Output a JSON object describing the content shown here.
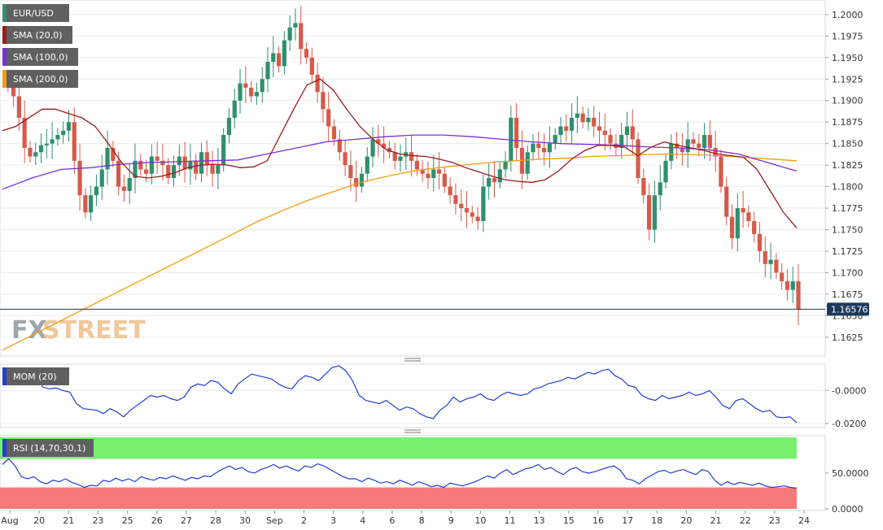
{
  "symbol": "EUR/USD",
  "watermark": {
    "part1": "FX",
    "part2": "STREET"
  },
  "price_tag": "1.16576",
  "indicators": {
    "sma20": {
      "label": "SMA (20,0)",
      "color": "#9b1c1c"
    },
    "sma100": {
      "label": "SMA (100,0)",
      "color": "#7a2fd8"
    },
    "sma200": {
      "label": "SMA (200,0)",
      "color": "#f39c12"
    },
    "mom": {
      "label": "MOM (20)",
      "color": "#1f3fd6"
    },
    "rsi": {
      "label": "RSI (14,70,30,1)",
      "color": "#1f3fd6"
    }
  },
  "colors": {
    "up": "#2f8f6f",
    "down": "#d65a4a",
    "rsi_high": "#78f06e",
    "rsi_low": "#f77a7a",
    "tag_bg": "#606060"
  },
  "chart_data": [
    {
      "type": "candlestick",
      "title": "EUR/USD",
      "x_tick_labels": [
        "Aug",
        "20",
        "21",
        "23",
        "25",
        "26",
        "27",
        "28",
        "30",
        "Sep",
        "2",
        "3",
        "4",
        "6",
        "8",
        "9",
        "10",
        "11",
        "13",
        "15",
        "16",
        "17",
        "18",
        "20",
        "21",
        "22",
        "23",
        "24"
      ],
      "y_tick_labels": [
        "1.2000",
        "1.1975",
        "1.1950",
        "1.1925",
        "1.1900",
        "1.1875",
        "1.1850",
        "1.1825",
        "1.1800",
        "1.1775",
        "1.1750",
        "1.1725",
        "1.1700",
        "1.1675",
        "1.1650",
        "1.1625"
      ],
      "ylim": [
        1.1605,
        1.2015
      ],
      "last_price": 1.16576,
      "close_series": [
        1.1925,
        1.192,
        1.1905,
        1.188,
        1.1845,
        1.1835,
        1.184,
        1.1848,
        1.185,
        1.1855,
        1.186,
        1.1865,
        1.1875,
        1.183,
        1.179,
        1.177,
        1.179,
        1.18,
        1.182,
        1.1845,
        1.183,
        1.18,
        1.1795,
        1.181,
        1.183,
        1.182,
        1.1815,
        1.1835,
        1.183,
        1.1825,
        1.181,
        1.1825,
        1.1835,
        1.182,
        1.183,
        1.1815,
        1.184,
        1.1825,
        1.1815,
        1.1825,
        1.186,
        1.188,
        1.19,
        1.192,
        1.1915,
        1.1905,
        1.191,
        1.1925,
        1.1945,
        1.1955,
        1.194,
        1.197,
        1.1985,
        1.199,
        1.196,
        1.195,
        1.193,
        1.191,
        1.189,
        1.187,
        1.1855,
        1.184,
        1.1825,
        1.181,
        1.18,
        1.1815,
        1.1835,
        1.1855,
        1.185,
        1.1845,
        1.184,
        1.183,
        1.1835,
        1.184,
        1.183,
        1.182,
        1.1815,
        1.181,
        1.182,
        1.1815,
        1.18,
        1.179,
        1.178,
        1.1775,
        1.177,
        1.1765,
        1.176,
        1.18,
        1.181,
        1.1805,
        1.182,
        1.183,
        1.188,
        1.1845,
        1.1815,
        1.184,
        1.185,
        1.1845,
        1.184,
        1.185,
        1.186,
        1.187,
        1.1865,
        1.188,
        1.1885,
        1.1875,
        1.188,
        1.187,
        1.1865,
        1.186,
        1.185,
        1.1845,
        1.186,
        1.187,
        1.1855,
        1.181,
        1.179,
        1.175,
        1.179,
        1.1805,
        1.183,
        1.185,
        1.1845,
        1.184,
        1.1855,
        1.185,
        1.1845,
        1.186,
        1.1845,
        1.1835,
        1.18,
        1.1765,
        1.174,
        1.1775,
        1.177,
        1.176,
        1.1745,
        1.1725,
        1.171,
        1.1715,
        1.17,
        1.169,
        1.168,
        1.169,
        1.1657
      ],
      "sma20": [
        1.1865,
        1.187,
        1.188,
        1.189,
        1.189,
        1.1885,
        1.188,
        1.187,
        1.185,
        1.1828,
        1.1812,
        1.181,
        1.1812,
        1.1816,
        1.1822,
        1.1825,
        1.1826,
        1.1825,
        1.1822,
        1.1823,
        1.183,
        1.186,
        1.189,
        1.1918,
        1.1925,
        1.1912,
        1.189,
        1.187,
        1.1855,
        1.1843,
        1.1838,
        1.1836,
        1.1835,
        1.1832,
        1.1828,
        1.1822,
        1.1817,
        1.1812,
        1.1808,
        1.1806,
        1.1805,
        1.1808,
        1.1818,
        1.1832,
        1.1842,
        1.1848,
        1.1848,
        1.1846,
        1.1836,
        1.1846,
        1.1852,
        1.1848,
        1.1845,
        1.1842,
        1.1838,
        1.1836,
        1.1834,
        1.182,
        1.1795,
        1.177,
        1.1752
      ],
      "sma100": [
        1.1797,
        1.181,
        1.182,
        1.1822,
        1.1826,
        1.1828,
        1.1829,
        1.183,
        1.1831,
        1.1838,
        1.1845,
        1.1852,
        1.1855,
        1.1858,
        1.186,
        1.186,
        1.1858,
        1.1855,
        1.1852,
        1.185,
        1.1849,
        1.1848,
        1.1846,
        1.1845,
        1.1843,
        1.1838,
        1.1828,
        1.1818
      ],
      "sma200": [
        1.161,
        1.1625,
        1.164,
        1.1655,
        1.167,
        1.1685,
        1.17,
        1.1715,
        1.173,
        1.1745,
        1.176,
        1.1773,
        1.1785,
        1.1795,
        1.1805,
        1.1812,
        1.1818,
        1.1822,
        1.1825,
        1.1828,
        1.183,
        1.1832,
        1.1833,
        1.1835,
        1.1836,
        1.1837,
        1.1838,
        1.1837,
        1.1836,
        1.1834,
        1.1832,
        1.183
      ]
    },
    {
      "type": "line",
      "title": "MOM (20)",
      "y_tick_labels": [
        "-0.0000",
        "-0.0200"
      ],
      "ylim": [
        -0.0215,
        0.015
      ],
      "values": [
        0.011,
        0.009,
        0.012,
        0.0105,
        0.013,
        0.01,
        0.002,
        0.001,
        0.0015,
        0.0,
        -0.001,
        -0.008,
        -0.011,
        -0.0115,
        -0.012,
        -0.014,
        -0.011,
        -0.013,
        -0.016,
        -0.012,
        -0.009,
        -0.006,
        -0.003,
        -0.004,
        -0.003,
        -0.005,
        -0.006,
        -0.004,
        0.002,
        0.004,
        0.003,
        0.006,
        0.005,
        0.001,
        -0.002,
        0.004,
        0.007,
        0.01,
        0.009,
        0.008,
        0.007,
        0.004,
        0.002,
        0.001,
        0.006,
        0.009,
        0.008,
        0.006,
        0.01,
        0.014,
        0.015,
        0.012,
        0.006,
        -0.003,
        -0.006,
        -0.007,
        -0.008,
        -0.006,
        -0.009,
        -0.012,
        -0.01,
        -0.011,
        -0.014,
        -0.016,
        -0.017,
        -0.012,
        -0.009,
        -0.004,
        -0.007,
        -0.005,
        -0.004,
        -0.002,
        -0.005,
        -0.006,
        -0.003,
        -0.001,
        -0.002,
        -0.003,
        -0.002,
        0.001,
        0.002,
        0.004,
        0.005,
        0.006,
        0.008,
        0.007,
        0.009,
        0.011,
        0.01,
        0.012,
        0.013,
        0.009,
        0.007,
        0.003,
        0.002,
        -0.003,
        -0.005,
        -0.006,
        -0.003,
        -0.005,
        -0.004,
        -0.003,
        -0.001,
        -0.003,
        -0.002,
        0.0,
        -0.004,
        -0.009,
        -0.011,
        -0.006,
        -0.005,
        -0.008,
        -0.011,
        -0.013,
        -0.012,
        -0.016,
        -0.0165,
        -0.016,
        -0.0195
      ]
    },
    {
      "type": "line",
      "title": "RSI (14,70,30,1)",
      "y_tick_labels": [
        "50.0000",
        "0.0000"
      ],
      "ylim": [
        0,
        100
      ],
      "bands": {
        "upper": 70,
        "lower": 30
      },
      "values": [
        62,
        70,
        60,
        45,
        42,
        45,
        38,
        35,
        40,
        38,
        42,
        37,
        34,
        30,
        33,
        32,
        40,
        38,
        43,
        39,
        42,
        38,
        45,
        42,
        40,
        44,
        42,
        46,
        43,
        40,
        44,
        42,
        46,
        45,
        51,
        56,
        60,
        55,
        58,
        52,
        50,
        55,
        58,
        62,
        57,
        60,
        56,
        53,
        60,
        58,
        63,
        60,
        55,
        50,
        45,
        42,
        42,
        38,
        43,
        40,
        36,
        38,
        35,
        40,
        37,
        33,
        38,
        35,
        31,
        33,
        30,
        36,
        34,
        32,
        35,
        38,
        42,
        46,
        43,
        50,
        55,
        48,
        52,
        56,
        58,
        62,
        55,
        58,
        52,
        48,
        55,
        58,
        52,
        50,
        52,
        55,
        58,
        60,
        54,
        42,
        40,
        35,
        42,
        47,
        52,
        54,
        50,
        53,
        55,
        51,
        48,
        55,
        52,
        40,
        33,
        38,
        34,
        37,
        35,
        33,
        36,
        32,
        30,
        31,
        32,
        30,
        29
      ]
    }
  ]
}
